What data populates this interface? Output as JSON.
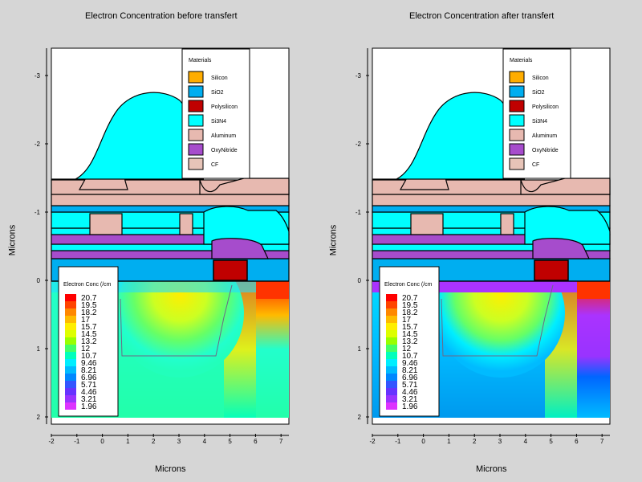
{
  "panels": [
    {
      "title": "Electron Concentration before transfert",
      "mode": "before"
    },
    {
      "title": "Electron Concentration after transfert",
      "mode": "after"
    }
  ],
  "xlabel": "Microns",
  "ylabel": "Microns",
  "x_ticks": [
    "-2",
    "-1",
    "0",
    "1",
    "2",
    "3",
    "4",
    "5",
    "6",
    "7"
  ],
  "y_ticks": [
    "-3",
    "-2",
    "-1",
    "0",
    "1",
    "2"
  ],
  "materials_legend": {
    "title": "Materials",
    "items": [
      {
        "name": "Silicon",
        "color": "#ffad00"
      },
      {
        "name": "SiO2",
        "color": "#00aef0"
      },
      {
        "name": "Polysilicon",
        "color": "#c00000"
      },
      {
        "name": "Si3N4",
        "color": "#00ffff"
      },
      {
        "name": "Aluminum",
        "color": "#e7b9b0"
      },
      {
        "name": "OxyNitride",
        "color": "#a64ccc"
      },
      {
        "name": "CF",
        "color": "#e7c4b8"
      }
    ]
  },
  "conc_legend": {
    "title": "Electron Conc (/cm",
    "levels": [
      "20.7",
      "19.5",
      "18.2",
      "17",
      "15.7",
      "14.5",
      "13.2",
      "12",
      "10.7",
      "9.46",
      "8.21",
      "6.96",
      "5.71",
      "4.46",
      "3.21",
      "1.96"
    ],
    "colors": [
      "#ff0000",
      "#ff4400",
      "#ff8800",
      "#ffbb00",
      "#ffee00",
      "#ddff00",
      "#99ff00",
      "#44ff66",
      "#00ffbb",
      "#00eeff",
      "#00bbff",
      "#0088ff",
      "#3355ff",
      "#6633ff",
      "#9933ff",
      "#dd33ff"
    ]
  },
  "chart_data": [
    {
      "type": "heatmap",
      "title": "Electron Concentration before transfert",
      "xlabel": "Microns",
      "ylabel": "Microns",
      "xlim": [
        -2,
        7.3
      ],
      "ylim": [
        2.1,
        -3.4
      ],
      "colorbar_label": "Electron Conc (/cm",
      "colorbar_levels": [
        20.7,
        19.5,
        18.2,
        17,
        15.7,
        14.5,
        13.2,
        12,
        10.7,
        9.46,
        8.21,
        6.96,
        5.71,
        4.46,
        3.21,
        1.96
      ]
    },
    {
      "type": "heatmap",
      "title": "Electron Concentration after transfert",
      "xlabel": "Microns",
      "ylabel": "Microns",
      "xlim": [
        -2,
        7.3
      ],
      "ylim": [
        2.1,
        -3.4
      ],
      "colorbar_label": "Electron Conc (/cm",
      "colorbar_levels": [
        20.7,
        19.5,
        18.2,
        17,
        15.7,
        14.5,
        13.2,
        12,
        10.7,
        9.46,
        8.21,
        6.96,
        5.71,
        4.46,
        3.21,
        1.96
      ]
    }
  ]
}
